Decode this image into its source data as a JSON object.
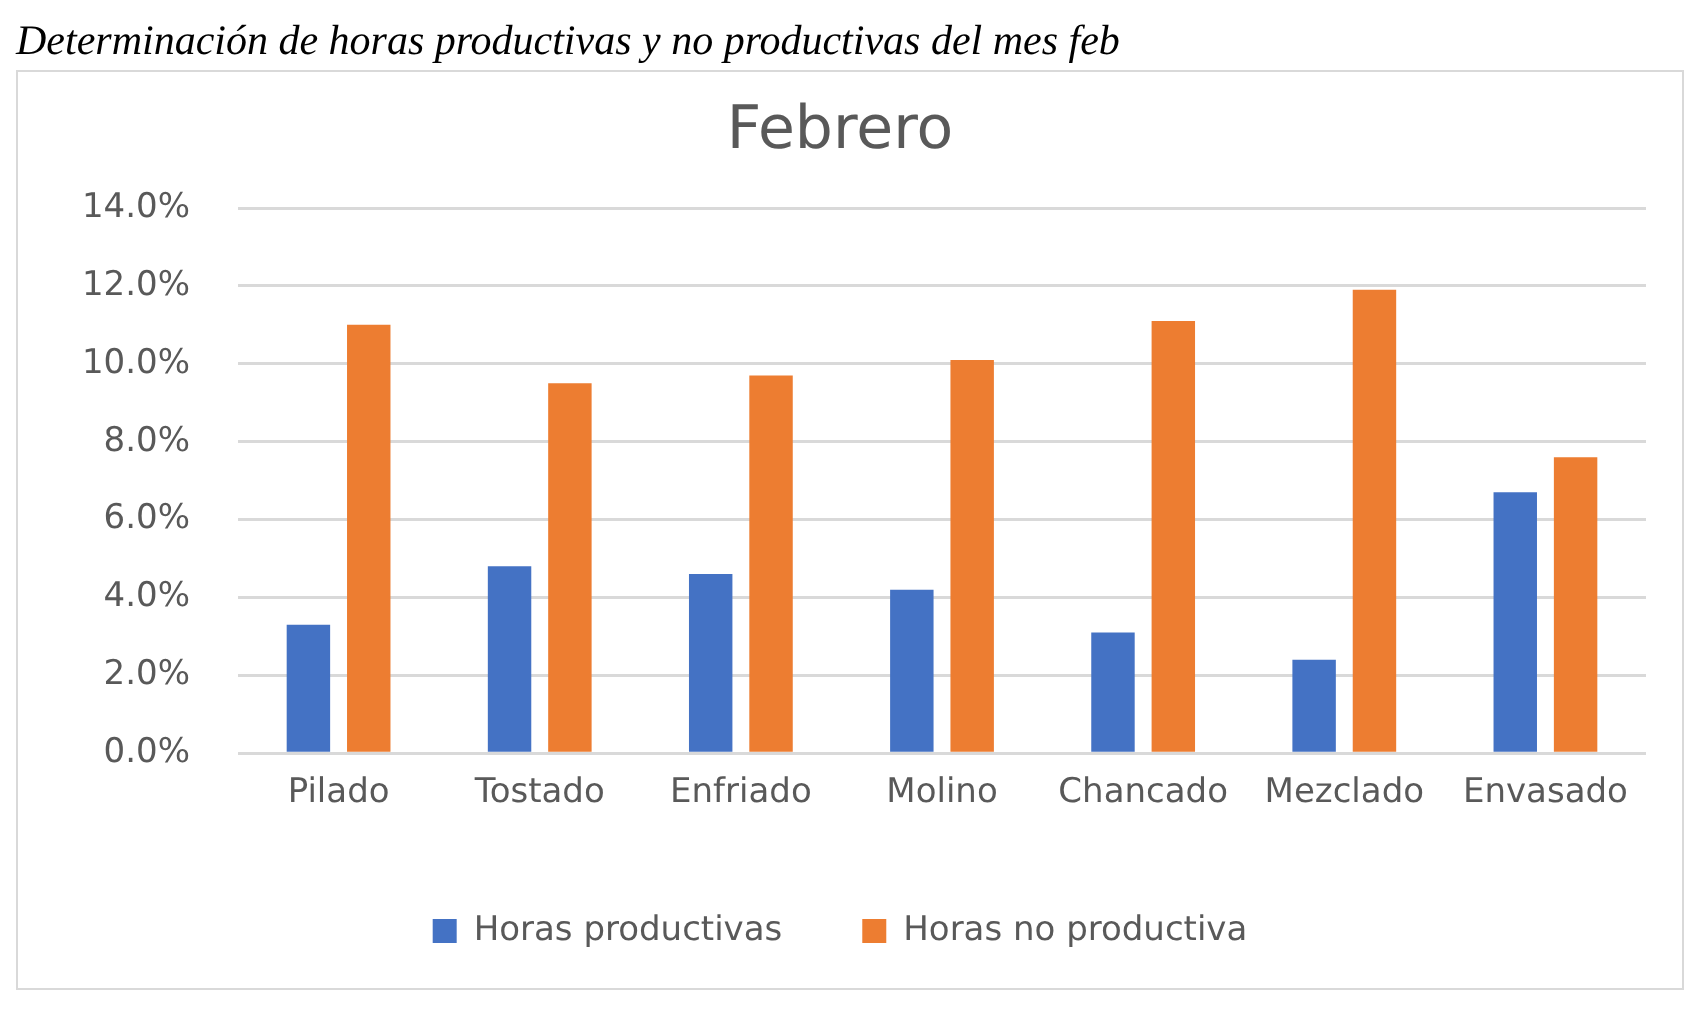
{
  "chart_data": {
    "type": "bar",
    "title": "Febrero",
    "annotations": [
      "Determinación de horas productivas y no productivas del mes feb"
    ],
    "categories": [
      "Pilado",
      "Tostado",
      "Enfriado",
      "Molino",
      "Chancado",
      "Mezclado",
      "Envasado"
    ],
    "series": [
      {
        "name": "Horas productivas",
        "color": "#4472c4",
        "values": [
          3.3,
          4.8,
          4.6,
          4.2,
          3.1,
          2.4,
          6.7
        ]
      },
      {
        "name": "Horas no productiva",
        "color": "#ed7d31",
        "values": [
          11.0,
          9.5,
          9.7,
          10.1,
          11.1,
          11.9,
          7.6
        ]
      }
    ],
    "ylim": [
      0,
      14
    ],
    "yticks": [
      {
        "value": 0,
        "label": "0.0%"
      },
      {
        "value": 2,
        "label": "2.0%"
      },
      {
        "value": 4,
        "label": "4.0%"
      },
      {
        "value": 6,
        "label": "6.0%"
      },
      {
        "value": 8,
        "label": "8.0%"
      },
      {
        "value": 10,
        "label": "10.0%"
      },
      {
        "value": 12,
        "label": "12.0%"
      },
      {
        "value": 14,
        "label": "14.0%"
      }
    ],
    "grid": "y",
    "legend": "bottom"
  }
}
